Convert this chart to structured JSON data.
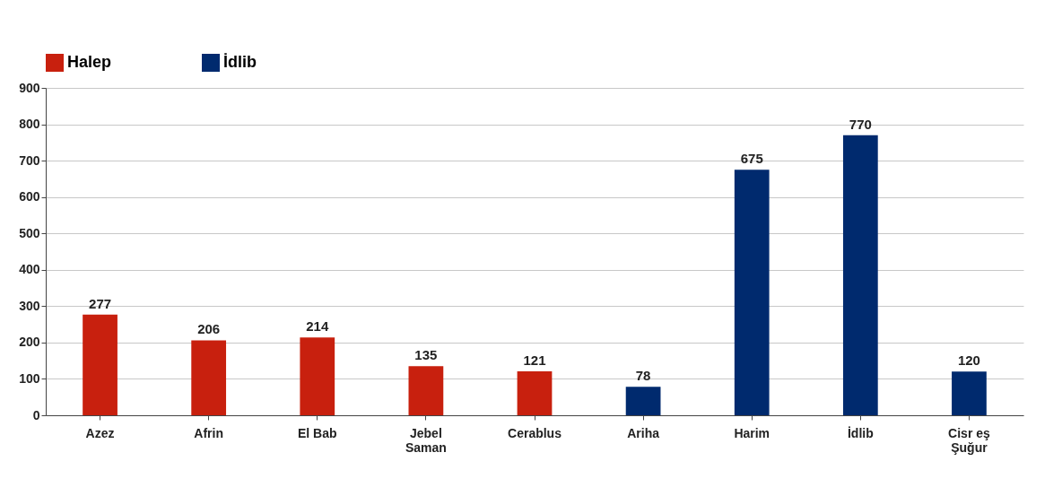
{
  "chart_data": {
    "type": "bar",
    "categories": [
      "Azez",
      "Afrin",
      "El Bab",
      "Jebel Saman",
      "Cerablus",
      "Ariha",
      "Harim",
      "İdlib",
      "Cisr eş Şuğur"
    ],
    "series": [
      {
        "name": "Halep",
        "color": "#c8200e",
        "values": [
          277,
          206,
          214,
          135,
          121,
          null,
          null,
          null,
          null
        ]
      },
      {
        "name": "İdlib",
        "color": "#002a6e",
        "values": [
          null,
          null,
          null,
          null,
          null,
          78,
          675,
          770,
          120
        ]
      }
    ],
    "ylim": [
      0,
      900
    ],
    "yticks": [
      0,
      100,
      200,
      300,
      400,
      500,
      600,
      700,
      800,
      900
    ],
    "grid": "y",
    "legend": "top",
    "data_labels": true
  }
}
